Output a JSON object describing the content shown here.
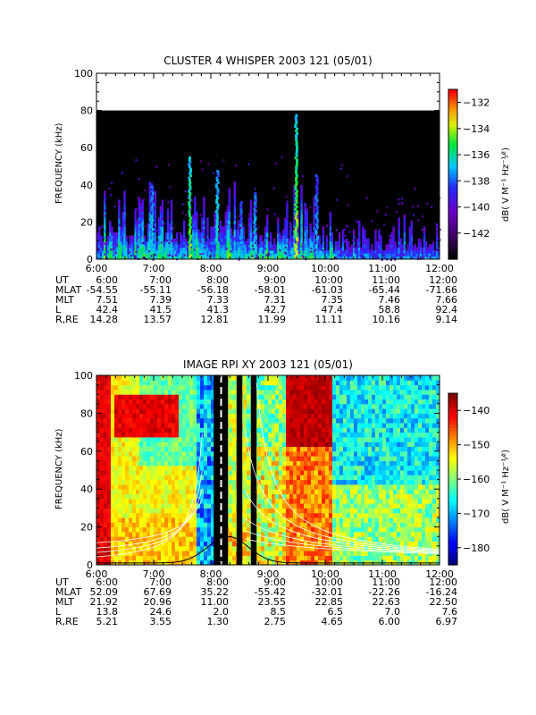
{
  "chart_data": [
    {
      "type": "heatmap",
      "title": "CLUSTER 4 WHISPER 2003 121 (05/01)",
      "ylabel": "FREQUENCY (kHz)",
      "colorbar_label": "dB( V M⁻¹ Hz⁻¹⁄²)",
      "ylim": [
        0,
        100
      ],
      "y_ticks": [
        0,
        20,
        40,
        60,
        80,
        100
      ],
      "data_max_frequency_khz": 80,
      "x_ticks": [
        "6:00",
        "7:00",
        "8:00",
        "9:00",
        "10:00",
        "11:00",
        "12:00"
      ],
      "colorbar_ticks": [
        -132,
        -134,
        -136,
        -138,
        -140,
        -142
      ],
      "colorbar_range": [
        -144,
        -131
      ],
      "ephemeris": {
        "UT": [
          "6:00",
          "7:00",
          "8:00",
          "9:00",
          "10:00",
          "11:00",
          "12:00"
        ],
        "MLAT": [
          "-54.55",
          "-55.11",
          "-56.18",
          "-58.01",
          "-61.03",
          "-65.44",
          "-71.66"
        ],
        "MLT": [
          "7.51",
          "7.39",
          "7.33",
          "7.31",
          "7.35",
          "7.46",
          "7.66"
        ],
        "L": [
          "42.4",
          "41.5",
          "41.3",
          "42.7",
          "47.4",
          "58.8",
          "92.4"
        ],
        "R,RE": [
          "14.28",
          "13.57",
          "12.81",
          "11.99",
          "11.11",
          "10.16",
          "9.14"
        ]
      }
    },
    {
      "type": "heatmap",
      "title": "IMAGE RPI XY 2003 121 (05/01)",
      "ylabel": "FREQUENCY (kHz)",
      "colorbar_label": "dB( V M⁻¹ Hz⁻¹⁄²)",
      "ylim": [
        0,
        100
      ],
      "y_ticks": [
        0,
        20,
        40,
        60,
        80,
        100
      ],
      "x_ticks": [
        "6:00",
        "7:00",
        "8:00",
        "9:00",
        "10:00",
        "11:00",
        "12:00"
      ],
      "colorbar_ticks": [
        -140,
        -150,
        -160,
        -170,
        -180
      ],
      "colorbar_range": [
        -185,
        -135
      ],
      "ephemeris": {
        "UT": [
          "6:00",
          "7:00",
          "8:00",
          "9:00",
          "10:00",
          "11:00",
          "12:00"
        ],
        "MLAT": [
          "52.09",
          "67.69",
          "35.22",
          "-55.42",
          "-32.01",
          "-22.26",
          "-16.24"
        ],
        "MLT": [
          "21.92",
          "20.96",
          "11.00",
          "23.55",
          "22.85",
          "22.63",
          "22.50"
        ],
        "L": [
          "13.8",
          "24.6",
          "2.0",
          "8.5",
          "6.5",
          "7.0",
          "7.6"
        ],
        "R,RE": [
          "5.21",
          "3.55",
          "1.30",
          "2.75",
          "4.65",
          "6.00",
          "6.97"
        ]
      }
    }
  ],
  "ephem_labels": [
    "UT",
    "MLAT",
    "MLT",
    "L",
    "R,RE"
  ]
}
